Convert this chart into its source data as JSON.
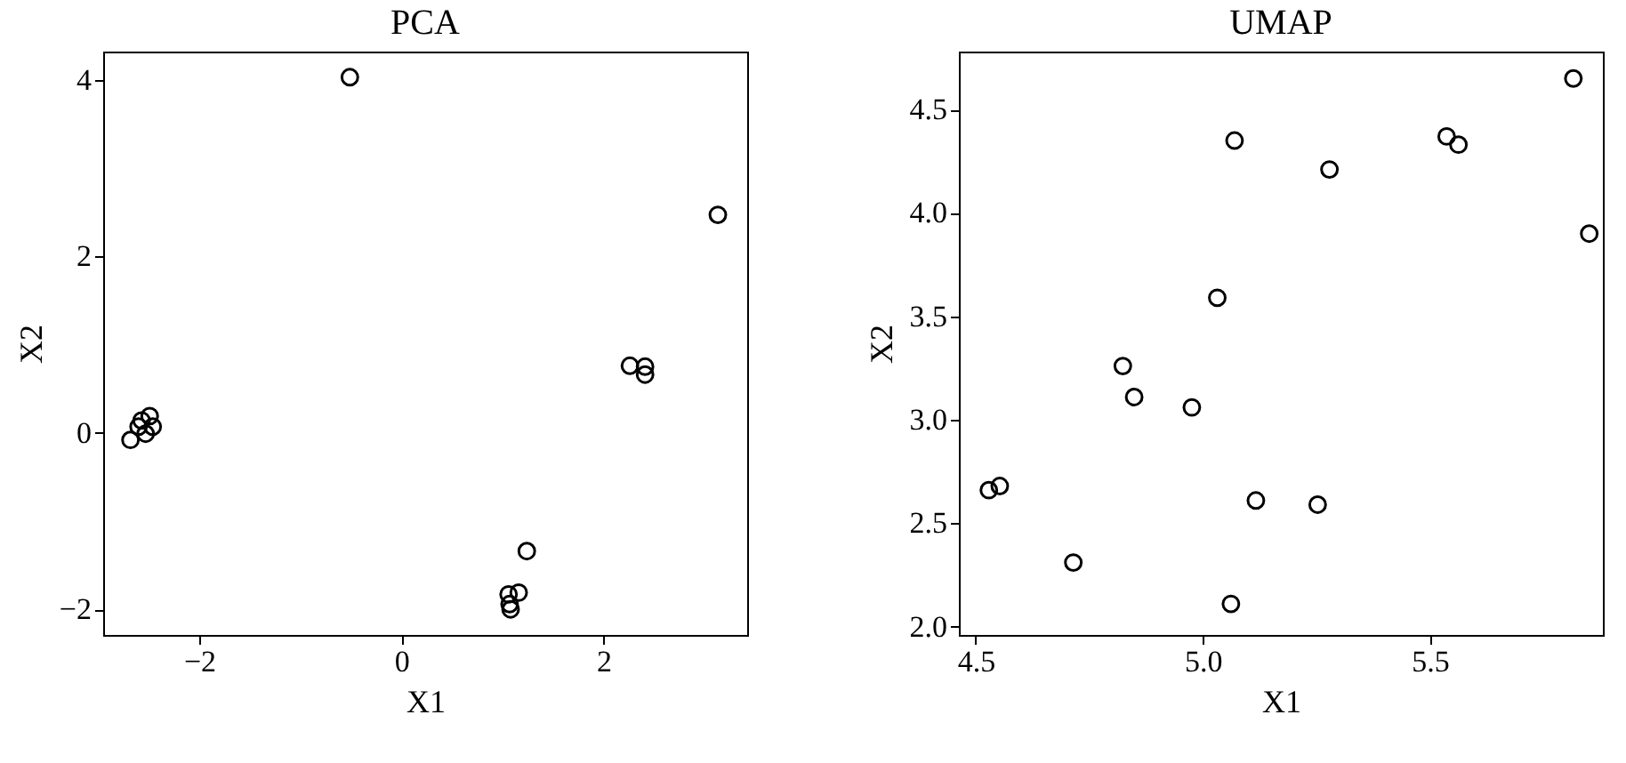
{
  "chart_data": [
    {
      "type": "scatter",
      "title": "PCA",
      "xlabel": "X1",
      "ylabel": "X2",
      "marker": "circle",
      "grid": false,
      "xlim": [
        -2.95,
        3.42
      ],
      "ylim": [
        -2.29,
        4.32
      ],
      "xticks": [
        {
          "value": -2,
          "label": "−2"
        },
        0,
        2
      ],
      "yticks": [
        {
          "value": -2,
          "label": "−2"
        },
        0,
        2,
        4
      ],
      "series": [
        {
          "color": "#000000",
          "x": [
            -0.51,
            3.13,
            2.26,
            2.41,
            2.41,
            1.24,
            1.16,
            1.06,
            1.07,
            1.08,
            -2.68,
            -2.6,
            -2.49,
            -2.46,
            -2.53,
            -2.57
          ],
          "values": [
            4.03,
            2.47,
            0.76,
            0.75,
            0.66,
            -1.34,
            -1.81,
            -1.83,
            -1.94,
            -2.0,
            -0.08,
            0.07,
            0.19,
            0.07,
            -0.01,
            0.14
          ]
        }
      ]
    },
    {
      "type": "scatter",
      "title": "UMAP",
      "xlabel": "X1",
      "ylabel": "X2",
      "marker": "circle",
      "grid": false,
      "xlim": [
        4.463,
        5.881
      ],
      "ylim": [
        1.96,
        4.78
      ],
      "xticks": [
        {
          "value": 4.5,
          "label": "4.5"
        },
        {
          "value": 5,
          "label": "5.0"
        },
        {
          "value": 5.5,
          "label": "5.5"
        }
      ],
      "yticks": [
        {
          "value": 2,
          "label": "2.0"
        },
        {
          "value": 2.5,
          "label": "2.5"
        },
        {
          "value": 3,
          "label": "3.0"
        },
        {
          "value": 3.5,
          "label": "3.5"
        },
        {
          "value": 4,
          "label": "4.0"
        },
        {
          "value": 4.5,
          "label": "4.5"
        }
      ],
      "series": [
        {
          "color": "#000000",
          "x": [
            5.816,
            5.07,
            5.537,
            5.563,
            5.279,
            5.851,
            5.032,
            4.824,
            4.849,
            4.976,
            4.529,
            4.553,
            5.117,
            5.253,
            4.715,
            5.062
          ],
          "values": [
            4.65,
            4.35,
            4.37,
            4.33,
            4.21,
            3.9,
            3.59,
            3.26,
            3.11,
            3.06,
            2.66,
            2.68,
            2.61,
            2.59,
            2.31,
            2.11
          ]
        }
      ]
    }
  ]
}
